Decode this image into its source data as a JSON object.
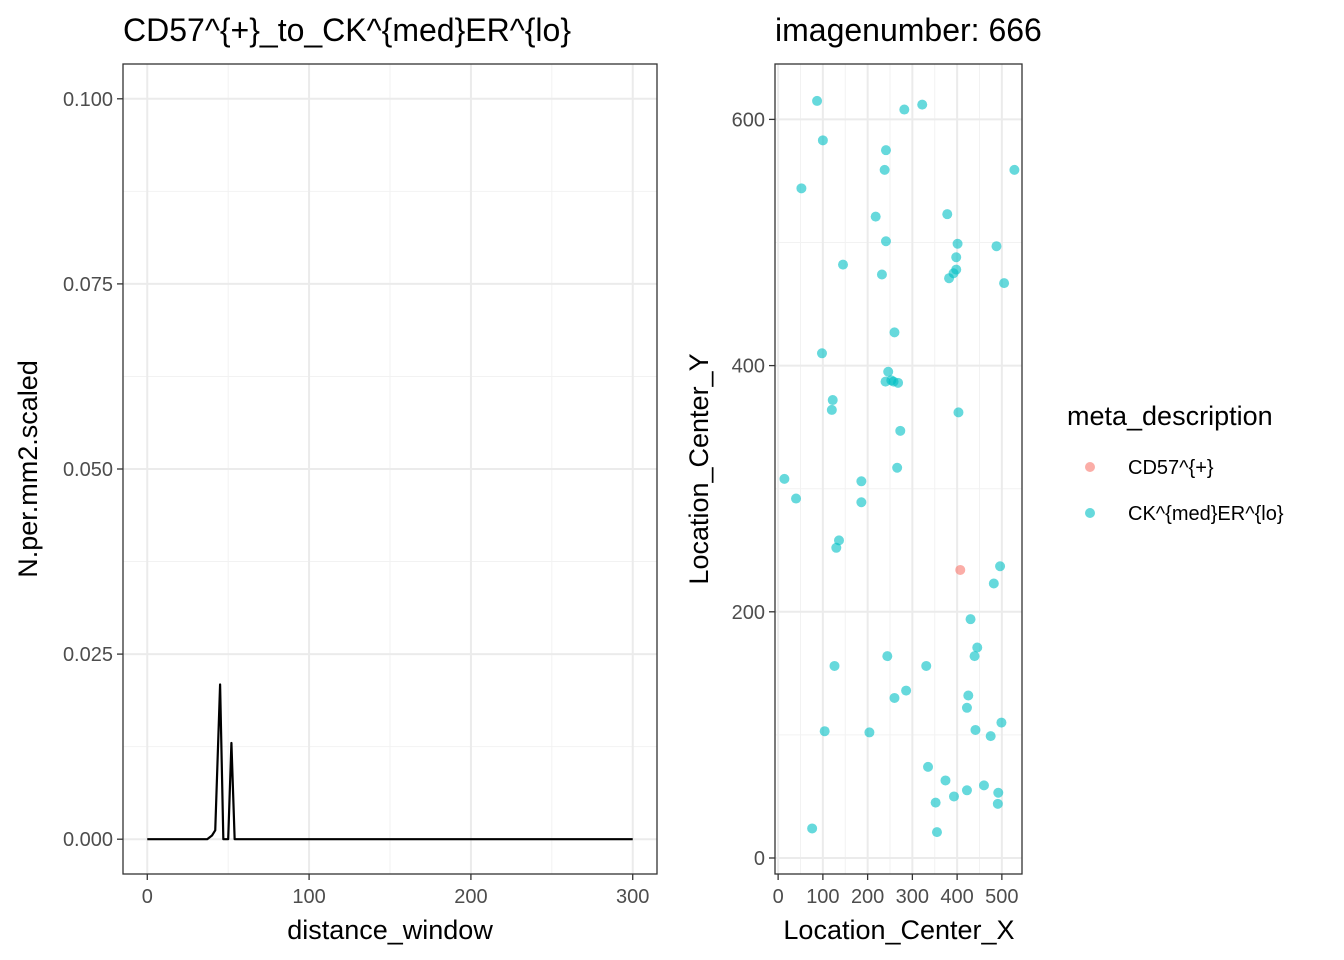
{
  "chart_data": [
    {
      "type": "line",
      "title": "CD57^{+}_to_CK^{med}ER^{lo}",
      "xlabel": "distance_window",
      "ylabel": "N.per.mm2.scaled",
      "xlim": [
        -15,
        315
      ],
      "ylim": [
        -0.0047,
        0.1047
      ],
      "xticks": [
        0,
        100,
        200,
        300
      ],
      "yticks": [
        0.0,
        0.025,
        0.05,
        0.075,
        0.1
      ],
      "ytick_labels": [
        "0.000",
        "0.025",
        "0.050",
        "0.075",
        "0.100"
      ],
      "grid": true,
      "series": [
        {
          "color": "#000000",
          "x": [
            0,
            10,
            20,
            30,
            37,
            40,
            42,
            45,
            47,
            50,
            52,
            54,
            60,
            100,
            150,
            200,
            250,
            300
          ],
          "y": [
            0,
            0,
            0,
            0,
            0,
            0.0005,
            0.0012,
            0.0209,
            0,
            0,
            0.013,
            0,
            0,
            0,
            0,
            0,
            0,
            0
          ]
        }
      ]
    },
    {
      "type": "scatter",
      "title": "imagenumber:  666",
      "xlabel": "Location_Center_X",
      "ylabel": "Location_Center_Y",
      "xlim": [
        -7,
        545
      ],
      "ylim": [
        -13,
        645
      ],
      "xticks": [
        0,
        100,
        200,
        300,
        400,
        500
      ],
      "yticks": [
        0,
        200,
        400,
        600
      ],
      "grid": true,
      "legend": {
        "title": "meta_description",
        "position": "right",
        "entries": [
          {
            "label": "CD57^{+}",
            "color": "#F8766D"
          },
          {
            "label": "CK^{med}ER^{lo}",
            "color": "#00BFC4"
          }
        ]
      },
      "series": [
        {
          "name": "CD57^{+}",
          "color": "#F8766D",
          "points": [
            [
              407,
              234
            ]
          ]
        },
        {
          "name": "CK^{med}ER^{lo}",
          "color": "#00BFC4",
          "points": [
            [
              87,
              615
            ],
            [
              322,
              612
            ],
            [
              282,
              608
            ],
            [
              100,
              583
            ],
            [
              241,
              575
            ],
            [
              238,
              559
            ],
            [
              528,
              559
            ],
            [
              52,
              544
            ],
            [
              378,
              523
            ],
            [
              218,
              521
            ],
            [
              241,
              501
            ],
            [
              401,
              499
            ],
            [
              488,
              497
            ],
            [
              398,
              488
            ],
            [
              145,
              482
            ],
            [
              398,
              478
            ],
            [
              392,
              475
            ],
            [
              232,
              474
            ],
            [
              382,
              471
            ],
            [
              505,
              467
            ],
            [
              260,
              427
            ],
            [
              98,
              410
            ],
            [
              246,
              395
            ],
            [
              253,
              388
            ],
            [
              258,
              387
            ],
            [
              240,
              387
            ],
            [
              268,
              386
            ],
            [
              122,
              372
            ],
            [
              120,
              364
            ],
            [
              403,
              362
            ],
            [
              273,
              347
            ],
            [
              266,
              317
            ],
            [
              14,
              308
            ],
            [
              186,
              306
            ],
            [
              40,
              292
            ],
            [
              186,
              289
            ],
            [
              136,
              258
            ],
            [
              130,
              252
            ],
            [
              496,
              237
            ],
            [
              482,
              223
            ],
            [
              430,
              194
            ],
            [
              445,
              171
            ],
            [
              439,
              164
            ],
            [
              244,
              164
            ],
            [
              126,
              156
            ],
            [
              331,
              156
            ],
            [
              286,
              136
            ],
            [
              425,
              132
            ],
            [
              260,
              130
            ],
            [
              422,
              122
            ],
            [
              499,
              110
            ],
            [
              441,
              104
            ],
            [
              104,
              103
            ],
            [
              204,
              102
            ],
            [
              475,
              99
            ],
            [
              335,
              74
            ],
            [
              374,
              63
            ],
            [
              460,
              59
            ],
            [
              422,
              55
            ],
            [
              492,
              53
            ],
            [
              393,
              50
            ],
            [
              352,
              45
            ],
            [
              491,
              44
            ],
            [
              76,
              24
            ],
            [
              355,
              21
            ]
          ]
        }
      ]
    }
  ]
}
